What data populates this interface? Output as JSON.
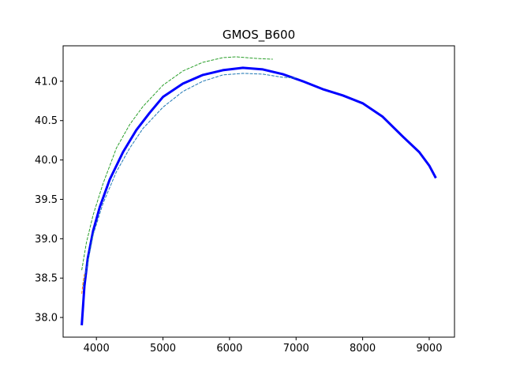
{
  "chart_data": {
    "type": "line",
    "title": "GMOS_B600",
    "xlabel": "",
    "ylabel": "",
    "xlim": [
      3500,
      9380
    ],
    "ylim": [
      37.75,
      41.45
    ],
    "xticks": [
      4000,
      5000,
      6000,
      7000,
      8000,
      9000
    ],
    "yticks": [
      38.0,
      38.5,
      39.0,
      39.5,
      40.0,
      40.5,
      41.0
    ],
    "ytick_labels": [
      "38.0",
      "38.5",
      "39.0",
      "39.5",
      "40.0",
      "40.5",
      "41.0"
    ],
    "grid": false,
    "series": [
      {
        "color": "#0000ff",
        "style": "solid",
        "width": "thick",
        "points": [
          [
            3780,
            37.9
          ],
          [
            3820,
            38.4
          ],
          [
            3870,
            38.75
          ],
          [
            3950,
            39.1
          ],
          [
            4050,
            39.4
          ],
          [
            4200,
            39.75
          ],
          [
            4400,
            40.1
          ],
          [
            4600,
            40.38
          ],
          [
            4800,
            40.6
          ],
          [
            5000,
            40.8
          ],
          [
            5300,
            40.97
          ],
          [
            5600,
            41.08
          ],
          [
            5900,
            41.14
          ],
          [
            6200,
            41.17
          ],
          [
            6500,
            41.15
          ],
          [
            6800,
            41.09
          ],
          [
            7100,
            41.0
          ],
          [
            7400,
            40.9
          ],
          [
            7700,
            40.82
          ],
          [
            8000,
            40.72
          ],
          [
            8300,
            40.55
          ],
          [
            8600,
            40.3
          ],
          [
            8850,
            40.1
          ],
          [
            9000,
            39.93
          ],
          [
            9100,
            39.77
          ]
        ]
      },
      {
        "color": "#2ca02c",
        "style": "dashed",
        "width": "thin",
        "points": [
          [
            3780,
            38.6
          ],
          [
            3850,
            38.95
          ],
          [
            3950,
            39.3
          ],
          [
            4100,
            39.7
          ],
          [
            4300,
            40.15
          ],
          [
            4500,
            40.45
          ],
          [
            4700,
            40.68
          ],
          [
            5000,
            40.95
          ],
          [
            5300,
            41.13
          ],
          [
            5600,
            41.24
          ],
          [
            5900,
            41.3
          ],
          [
            6100,
            41.31
          ],
          [
            6400,
            41.29
          ],
          [
            6650,
            41.28
          ]
        ]
      },
      {
        "color": "#1f77b4",
        "style": "dashed",
        "width": "thin",
        "points": [
          [
            3800,
            38.4
          ],
          [
            3870,
            38.7
          ],
          [
            3950,
            39.05
          ],
          [
            4100,
            39.45
          ],
          [
            4300,
            39.85
          ],
          [
            4500,
            40.15
          ],
          [
            4700,
            40.4
          ],
          [
            5000,
            40.67
          ],
          [
            5300,
            40.87
          ],
          [
            5600,
            41.0
          ],
          [
            5900,
            41.08
          ],
          [
            6200,
            41.1
          ],
          [
            6500,
            41.09
          ],
          [
            6800,
            41.05
          ],
          [
            7000,
            41.04
          ]
        ]
      },
      {
        "color": "#ff7f0e",
        "style": "dashed",
        "width": "thin",
        "points": [
          [
            3780,
            38.3
          ],
          [
            3800,
            38.45
          ],
          [
            3820,
            38.55
          ]
        ]
      }
    ]
  }
}
